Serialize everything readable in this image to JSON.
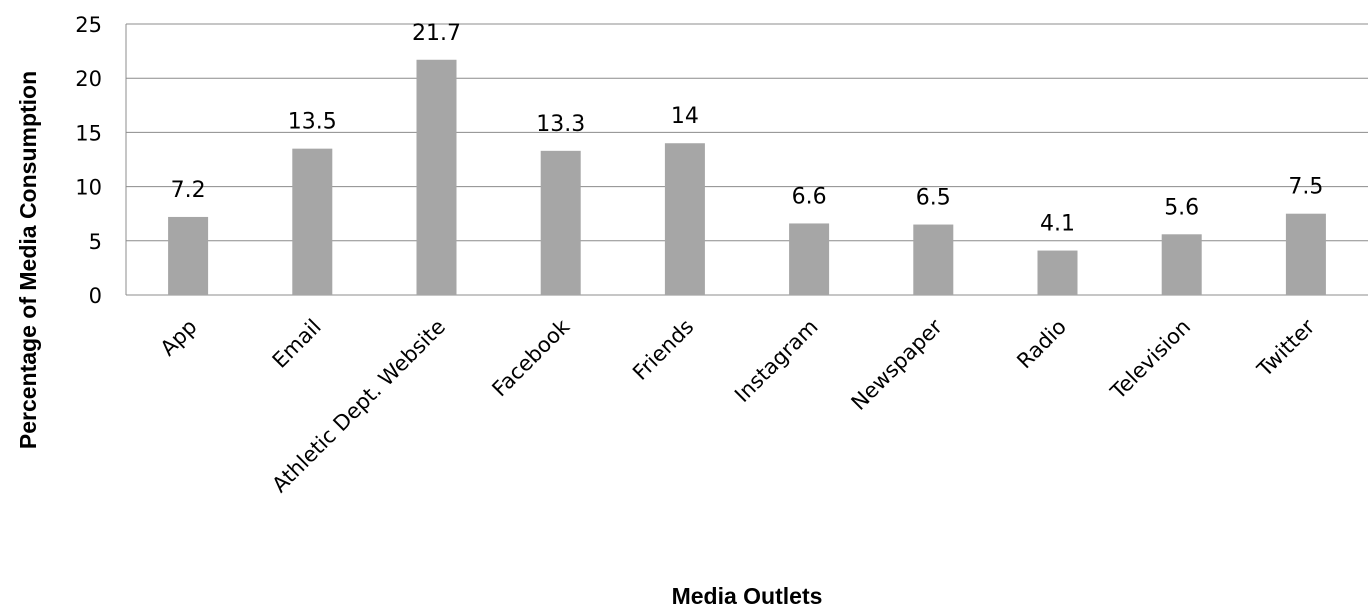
{
  "chart_data": {
    "type": "bar",
    "title": "",
    "xlabel": "Media Outlets",
    "ylabel": "Percentage of Media Consumption",
    "categories": [
      "App",
      "Email",
      "Athletic Dept. Website",
      "Facebook",
      "Friends",
      "Instagram",
      "Newspaper",
      "Radio",
      "Television",
      "Twitter"
    ],
    "values": [
      7.2,
      13.5,
      21.7,
      13.3,
      14,
      6.6,
      6.5,
      4.1,
      5.6,
      7.5
    ],
    "data_labels": [
      "7.2",
      "13.5",
      "21.7",
      "13.3",
      "14",
      "6.6",
      "6.5",
      "4.1",
      "5.6",
      "7.5"
    ],
    "ylim": [
      0,
      25
    ],
    "yticks": [
      0,
      5,
      10,
      15,
      20,
      25
    ],
    "grid": true,
    "legend": "none",
    "bar_color": "#a6a6a6",
    "grid_color": "#8c8c8c"
  }
}
